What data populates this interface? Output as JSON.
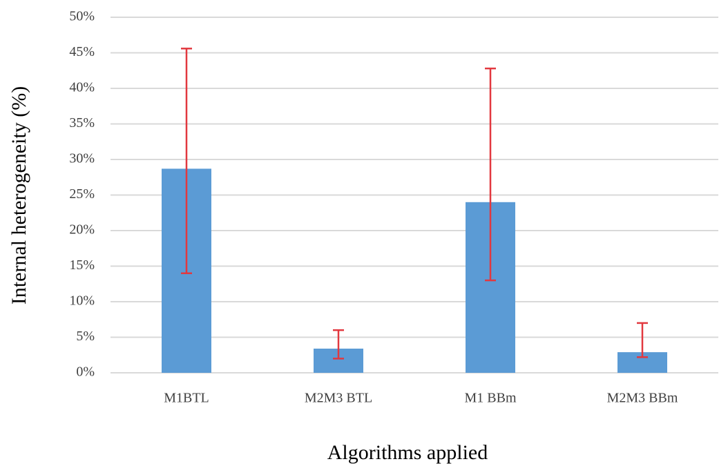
{
  "chart_data": {
    "type": "bar",
    "x_label": "Algorithms applied",
    "y_label": "Internal heterogeneity (%)",
    "categories": [
      "M1BTL",
      "M2M3 BTL",
      "M1 BBm",
      "M2M3 BBm"
    ],
    "values": [
      28.7,
      3.4,
      24.0,
      2.9
    ],
    "error_low": [
      14.7,
      1.4,
      11.0,
      0.7
    ],
    "error_high": [
      16.9,
      2.6,
      18.8,
      4.1
    ],
    "color": "#5b9bd5",
    "error_color": "#e2383f",
    "ylim": [
      0,
      50
    ],
    "yticks": [
      {
        "value": 0,
        "label": "0%"
      },
      {
        "value": 5,
        "label": "5%"
      },
      {
        "value": 10,
        "label": "10%"
      },
      {
        "value": 15,
        "label": "15%"
      },
      {
        "value": 20,
        "label": "20%"
      },
      {
        "value": 25,
        "label": "25%"
      },
      {
        "value": 30,
        "label": "30%"
      },
      {
        "value": 35,
        "label": "35%"
      },
      {
        "value": 40,
        "label": "40%"
      },
      {
        "value": 45,
        "label": "45%"
      },
      {
        "value": 50,
        "label": "50%"
      }
    ],
    "grid": true
  }
}
